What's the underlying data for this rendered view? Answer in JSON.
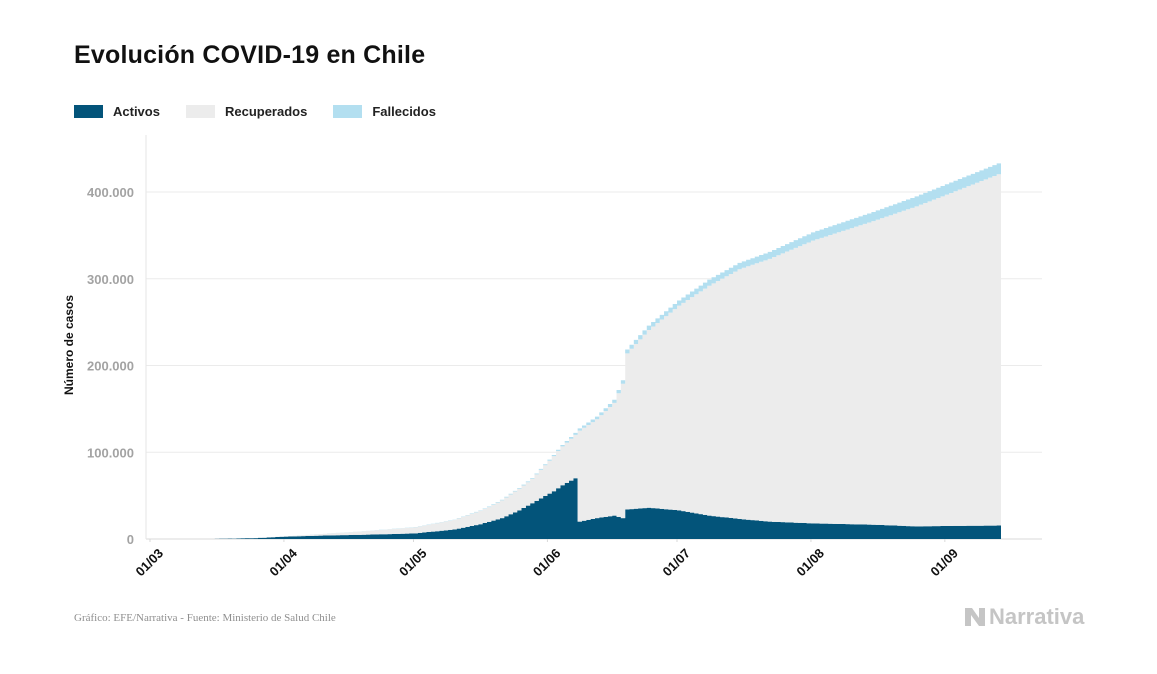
{
  "title": "Evolución COVID-19 en Chile",
  "legend": [
    {
      "label": "Activos",
      "color": "#03547a"
    },
    {
      "label": "Recuperados",
      "color": "#ececec"
    },
    {
      "label": "Fallecidos",
      "color": "#b3dff0"
    }
  ],
  "source": "Gráfico: EFE/Narrativa - Fuente: Ministerio de Salud Chile",
  "brand": "Narrativa",
  "chart_data": {
    "type": "area",
    "stacked": true,
    "ylabel": "Número de casos",
    "xlabel": "",
    "ylim": [
      0,
      460000
    ],
    "x_range": [
      "2020-03-01",
      "2020-09-13"
    ],
    "yticks": [
      {
        "value": 0,
        "label": "0"
      },
      {
        "value": 100000,
        "label": "100.000"
      },
      {
        "value": 200000,
        "label": "200.000"
      },
      {
        "value": 300000,
        "label": "300.000"
      },
      {
        "value": 400000,
        "label": "400.000"
      }
    ],
    "xticks": [
      {
        "date": "2020-03-01",
        "label": "01/03"
      },
      {
        "date": "2020-04-01",
        "label": "01/04"
      },
      {
        "date": "2020-05-01",
        "label": "01/05"
      },
      {
        "date": "2020-06-01",
        "label": "01/06"
      },
      {
        "date": "2020-07-01",
        "label": "01/07"
      },
      {
        "date": "2020-08-01",
        "label": "01/08"
      },
      {
        "date": "2020-09-01",
        "label": "01/09"
      }
    ],
    "grid": true,
    "series": [
      {
        "name": "Activos",
        "color": "#03547a",
        "keypoints": [
          [
            "2020-03-03",
            1
          ],
          [
            "2020-03-15",
            60
          ],
          [
            "2020-03-20",
            500
          ],
          [
            "2020-03-25",
            1000
          ],
          [
            "2020-04-01",
            2800
          ],
          [
            "2020-04-10",
            4000
          ],
          [
            "2020-04-20",
            5000
          ],
          [
            "2020-05-01",
            6500
          ],
          [
            "2020-05-10",
            11000
          ],
          [
            "2020-05-16",
            17000
          ],
          [
            "2020-05-21",
            24000
          ],
          [
            "2020-05-25",
            33000
          ],
          [
            "2020-05-29",
            44000
          ],
          [
            "2020-06-02",
            55000
          ],
          [
            "2020-06-04",
            62000
          ],
          [
            "2020-06-07",
            70000
          ],
          [
            "2020-06-08",
            20000
          ],
          [
            "2020-06-12",
            24000
          ],
          [
            "2020-06-16",
            27000
          ],
          [
            "2020-06-18",
            24000
          ],
          [
            "2020-06-19",
            34000
          ],
          [
            "2020-06-24",
            36000
          ],
          [
            "2020-07-01",
            33000
          ],
          [
            "2020-07-08",
            27000
          ],
          [
            "2020-07-15",
            23000
          ],
          [
            "2020-07-22",
            20000
          ],
          [
            "2020-08-01",
            18000
          ],
          [
            "2020-08-15",
            16500
          ],
          [
            "2020-08-25",
            14500
          ],
          [
            "2020-09-01",
            15000
          ],
          [
            "2020-09-13",
            15500
          ]
        ]
      },
      {
        "name": "Recuperados",
        "color": "#ececec",
        "keypoints": [
          [
            "2020-03-03",
            0
          ],
          [
            "2020-03-22",
            20
          ],
          [
            "2020-04-01",
            300
          ],
          [
            "2020-04-15",
            3000
          ],
          [
            "2020-05-01",
            7000
          ],
          [
            "2020-05-10",
            11000
          ],
          [
            "2020-05-18",
            17000
          ],
          [
            "2020-05-24",
            24000
          ],
          [
            "2020-05-28",
            28000
          ],
          [
            "2020-06-03",
            43000
          ],
          [
            "2020-06-07",
            50000
          ],
          [
            "2020-06-08",
            105000
          ],
          [
            "2020-06-12",
            114000
          ],
          [
            "2020-06-16",
            130000
          ],
          [
            "2020-06-18",
            155000
          ],
          [
            "2020-06-19",
            180000
          ],
          [
            "2020-06-24",
            205000
          ],
          [
            "2020-07-01",
            236000
          ],
          [
            "2020-07-08",
            265000
          ],
          [
            "2020-07-15",
            288000
          ],
          [
            "2020-07-22",
            303000
          ],
          [
            "2020-08-01",
            326000
          ],
          [
            "2020-08-15",
            350000
          ],
          [
            "2020-08-25",
            369000
          ],
          [
            "2020-09-01",
            382000
          ],
          [
            "2020-09-13",
            405000
          ]
        ]
      },
      {
        "name": "Fallecidos",
        "color": "#b3dff0",
        "keypoints": [
          [
            "2020-03-03",
            0
          ],
          [
            "2020-03-22",
            1
          ],
          [
            "2020-04-01",
            12
          ],
          [
            "2020-04-15",
            120
          ],
          [
            "2020-05-01",
            270
          ],
          [
            "2020-05-10",
            400
          ],
          [
            "2020-05-18",
            600
          ],
          [
            "2020-05-24",
            800
          ],
          [
            "2020-05-28",
            1000
          ],
          [
            "2020-06-03",
            1400
          ],
          [
            "2020-06-07",
            2300
          ],
          [
            "2020-06-08",
            2500
          ],
          [
            "2020-06-12",
            3100
          ],
          [
            "2020-06-16",
            3500
          ],
          [
            "2020-06-18",
            4000
          ],
          [
            "2020-06-19",
            4500
          ],
          [
            "2020-06-24",
            5000
          ],
          [
            "2020-07-01",
            6000
          ],
          [
            "2020-07-08",
            7000
          ],
          [
            "2020-07-15",
            7300
          ],
          [
            "2020-07-22",
            8000
          ],
          [
            "2020-08-01",
            9500
          ],
          [
            "2020-08-15",
            10500
          ],
          [
            "2020-08-25",
            11500
          ],
          [
            "2020-09-01",
            12000
          ],
          [
            "2020-09-13",
            12500
          ]
        ]
      }
    ]
  }
}
